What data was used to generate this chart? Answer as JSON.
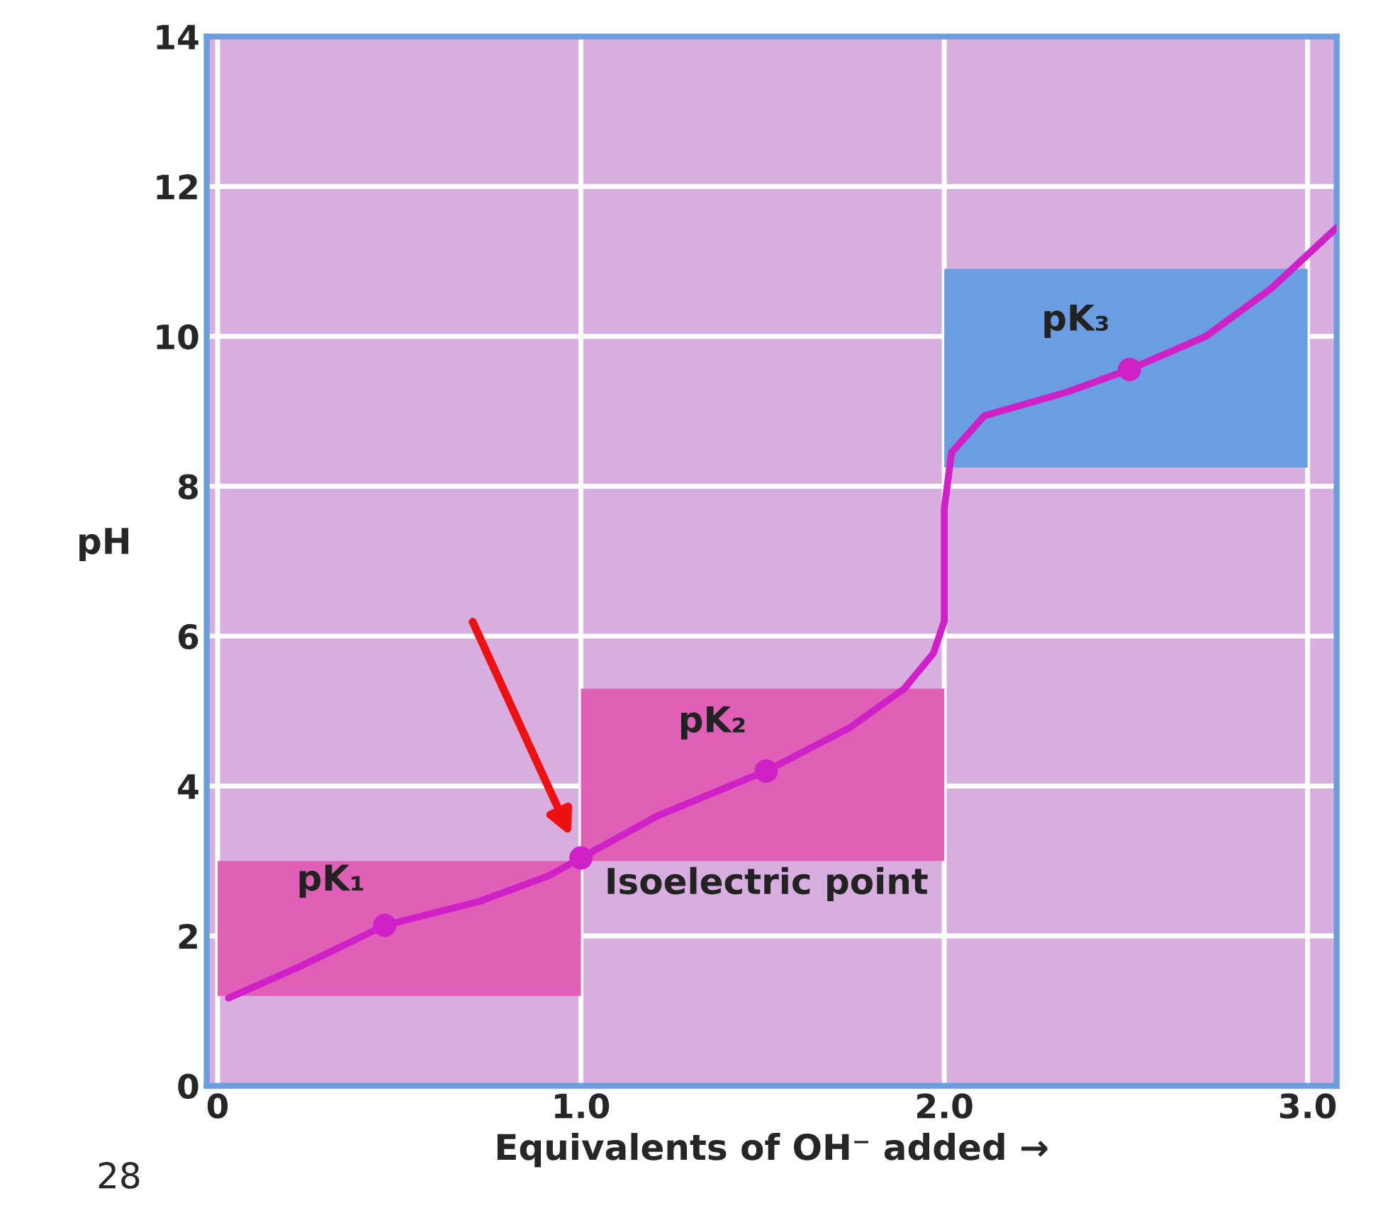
{
  "chart_data": {
    "type": "line",
    "xlabel": "Equivalents of OH⁻ added →",
    "ylabel": "pH",
    "xlim": [
      -0.03,
      3.08
    ],
    "ylim": [
      0,
      14
    ],
    "xticks": [
      {
        "value": 0,
        "label": "0"
      },
      {
        "value": 1,
        "label": "1.0"
      },
      {
        "value": 2,
        "label": "2.0"
      },
      {
        "value": 3,
        "label": "3.0"
      }
    ],
    "yticks": [
      0,
      2,
      4,
      6,
      8,
      10,
      12,
      14
    ],
    "grid": true,
    "legend": false,
    "series": [
      {
        "type": "bar",
        "x": [
          0.5,
          1.5,
          2.5
        ],
        "base": [
          1.2,
          3.0,
          8.25
        ],
        "values": [
          1.8,
          2.3,
          2.65
        ],
        "colors": [
          "#e060b8",
          "#e060b8",
          "#6a9ee0"
        ]
      },
      {
        "color": "#d020c8",
        "x": [
          0.03,
          0.23,
          0.46,
          0.72,
          0.91,
          1.0,
          1.21,
          1.51,
          1.74,
          1.89,
          1.97,
          2.0,
          2.0,
          2.02,
          2.11,
          2.34,
          2.51,
          2.72,
          2.9,
          3.08
        ],
        "values": [
          1.17,
          1.6,
          2.14,
          2.46,
          2.8,
          3.04,
          3.6,
          4.2,
          4.78,
          5.3,
          5.77,
          6.2,
          7.7,
          8.45,
          8.94,
          9.26,
          9.56,
          10.0,
          10.64,
          11.45
        ]
      },
      {
        "type": "scatter",
        "color": "#d020c8",
        "x": [
          0.46,
          1.0,
          1.51,
          2.51
        ],
        "values": [
          2.14,
          3.04,
          4.2,
          9.56
        ]
      }
    ],
    "annotations": [
      {
        "text": "pK₁",
        "x": 0.46,
        "y": 2.14
      },
      {
        "text": "pK₂",
        "x": 1.51,
        "y": 4.2
      },
      {
        "text": "pK₃",
        "x": 2.51,
        "y": 9.56
      },
      {
        "text": "Isoelectric point",
        "x": 1.0,
        "y": 3.04
      },
      "28"
    ]
  }
}
